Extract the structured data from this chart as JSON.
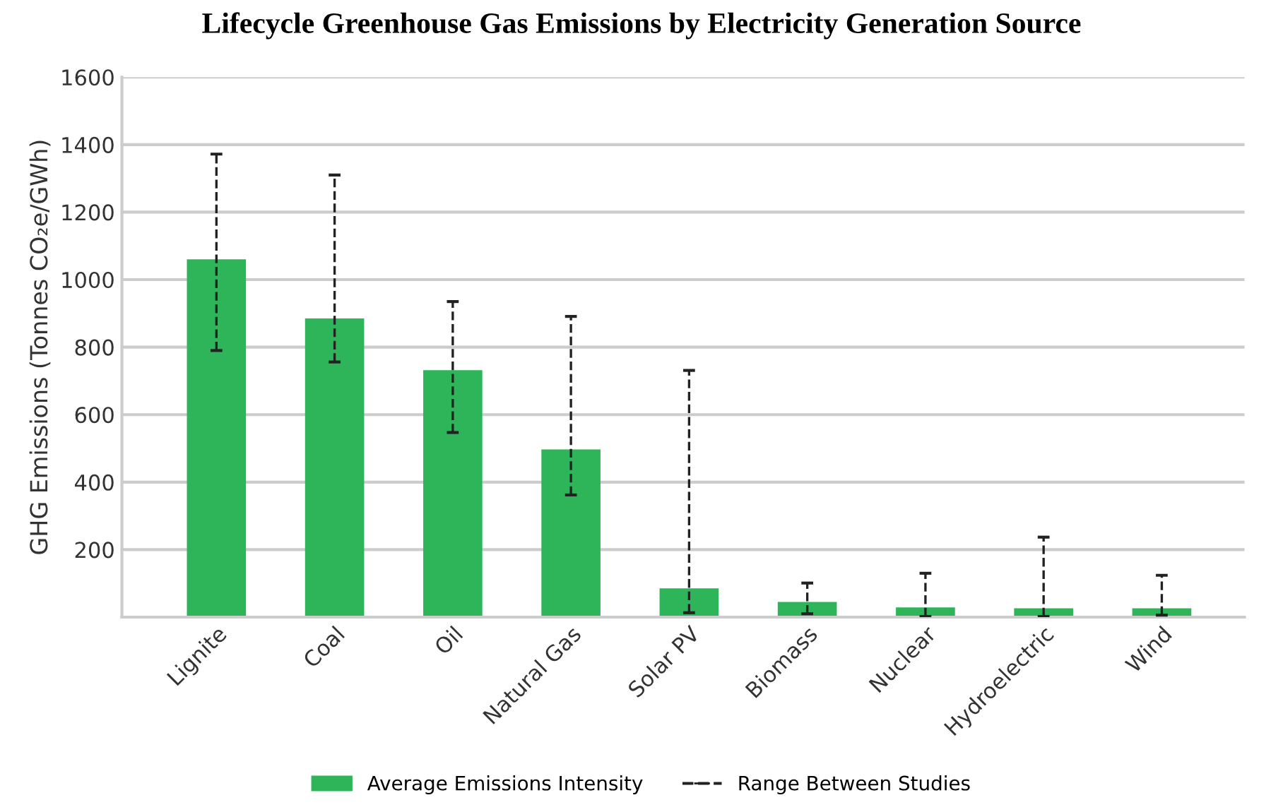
{
  "chart_data": {
    "type": "bar",
    "title": "Lifecycle Greenhouse Gas Emissions by Electricity Generation Source",
    "ylabel": "GHG Emissions (Tonnes CO₂e/GWh)",
    "categories": [
      "Lignite",
      "Coal",
      "Oil",
      "Natural Gas",
      "Solar PV",
      "Biomass",
      "Nuclear",
      "Hydroelectric",
      "Wind"
    ],
    "series": [
      {
        "name": "Average Emissions Intensity",
        "color": "#2eb55a",
        "values": [
          1060,
          885,
          732,
          497,
          85,
          45,
          29,
          26,
          26
        ],
        "errors": [
          [
            790,
            1372
          ],
          [
            756,
            1310
          ],
          [
            547,
            935
          ],
          [
            362,
            891
          ],
          [
            13,
            731
          ],
          [
            10,
            101
          ],
          [
            2,
            130
          ],
          [
            2,
            237
          ],
          [
            6,
            124
          ]
        ]
      }
    ],
    "annotations": [
      "Range Between Studies"
    ],
    "ylim": [
      0,
      1600
    ],
    "yticks": [
      {
        "value": 0,
        "label": null
      },
      200,
      400,
      600,
      800,
      1000,
      1200,
      1400,
      1600
    ],
    "grid": "y",
    "legend": "bottom",
    "line_style": "dashed"
  }
}
